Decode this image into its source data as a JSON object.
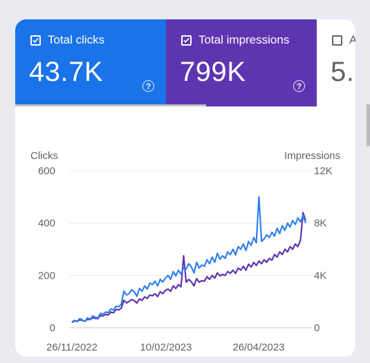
{
  "colors": {
    "clicks": "#2f80ed",
    "impressions": "#5e35b1",
    "clicks_bg": "#1a73e8",
    "impressions_bg": "#5e35b1"
  },
  "metrics": {
    "clicks": {
      "label": "Total clicks",
      "value": "43.7K",
      "checked": true,
      "icon": "help-icon"
    },
    "impressions": {
      "label": "Total impressions",
      "value": "799K",
      "checked": true,
      "icon": "help-icon"
    },
    "ctr": {
      "label": "A",
      "value": "5.",
      "checked": false
    }
  },
  "chart_data": {
    "type": "line",
    "ylabel_left": "Clicks",
    "ylabel_right": "Impressions",
    "y_left_ticks": [
      "600",
      "400",
      "200",
      "0"
    ],
    "y_right_ticks": [
      "12K",
      "8K",
      "4K",
      "0"
    ],
    "ylim_left": [
      0,
      600
    ],
    "ylim_right": [
      0,
      12000
    ],
    "x_tick_labels": [
      "26/11/2022",
      "10/02/2023",
      "26/04/2023"
    ],
    "grid": true,
    "series": [
      {
        "name": "Clicks",
        "axis": "left",
        "values": [
          22,
          28,
          25,
          35,
          30,
          24,
          38,
          32,
          45,
          40,
          38,
          55,
          52,
          60,
          58,
          72,
          68,
          82,
          80,
          90,
          140,
          125,
          130,
          145,
          138,
          120,
          150,
          140,
          160,
          148,
          170,
          165,
          178,
          160,
          185,
          175,
          190,
          200,
          185,
          215,
          198,
          220,
          205,
          230,
          225,
          245,
          232,
          210,
          250,
          228,
          240,
          235,
          260,
          245,
          270,
          250,
          285,
          262,
          275,
          265,
          290,
          280,
          300,
          278,
          310,
          300,
          320,
          295,
          330,
          315,
          345,
          325,
          500,
          330,
          340,
          355,
          345,
          365,
          350,
          380,
          360,
          390,
          372,
          400,
          385,
          410,
          395,
          420,
          405,
          430,
          400
        ]
      },
      {
        "name": "Impressions",
        "axis": "right",
        "values": [
          400,
          520,
          480,
          600,
          560,
          500,
          640,
          620,
          760,
          720,
          700,
          940,
          900,
          1020,
          980,
          1200,
          1140,
          1400,
          1360,
          1500,
          2100,
          1900,
          2000,
          2160,
          2080,
          1880,
          2200,
          2100,
          2360,
          2240,
          2500,
          2440,
          2600,
          2380,
          2760,
          2600,
          2860,
          2960,
          2780,
          3200,
          3000,
          3300,
          3120,
          5500,
          3480,
          3700,
          3500,
          3200,
          3760,
          3480,
          3600,
          3560,
          3900,
          3700,
          4000,
          3800,
          4200,
          3960,
          4080,
          4000,
          4300,
          4160,
          4400,
          4160,
          4560,
          4400,
          4700,
          4400,
          4860,
          4640,
          5000,
          4760,
          5100,
          4900,
          5200,
          5000,
          5300,
          5160,
          5600,
          5400,
          5800,
          5600,
          6000,
          5800,
          6200,
          6000,
          6400,
          6200,
          6700,
          8800,
          8200
        ]
      }
    ]
  }
}
